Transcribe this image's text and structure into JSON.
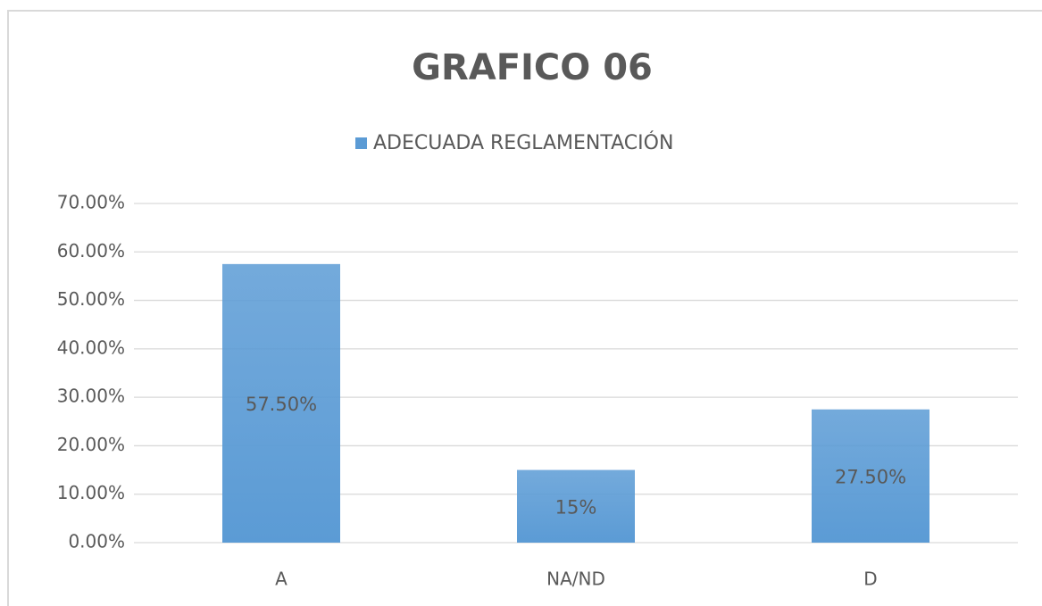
{
  "chart_data": {
    "type": "bar",
    "title": "GRAFICO 06",
    "categories": [
      "A",
      "NA/ND",
      "D"
    ],
    "series": [
      {
        "name": "ADECUADA REGLAMENTACIÓN",
        "color": "#5b9bd5",
        "values": [
          57.5,
          15,
          27.5
        ],
        "value_labels": [
          "57.50%",
          "15%",
          "27.50%"
        ]
      }
    ],
    "ylim": [
      0,
      70
    ],
    "yticks": [
      {
        "value": 0,
        "label": "0.00%"
      },
      {
        "value": 10,
        "label": "10.00%"
      },
      {
        "value": 20,
        "label": "20.00%"
      },
      {
        "value": 30,
        "label": "30.00%"
      },
      {
        "value": 40,
        "label": "40.00%"
      },
      {
        "value": 50,
        "label": "50.00%"
      },
      {
        "value": 60,
        "label": "60.00%"
      },
      {
        "value": 70,
        "label": "70.00%"
      }
    ],
    "grid": true,
    "legend": "top"
  }
}
